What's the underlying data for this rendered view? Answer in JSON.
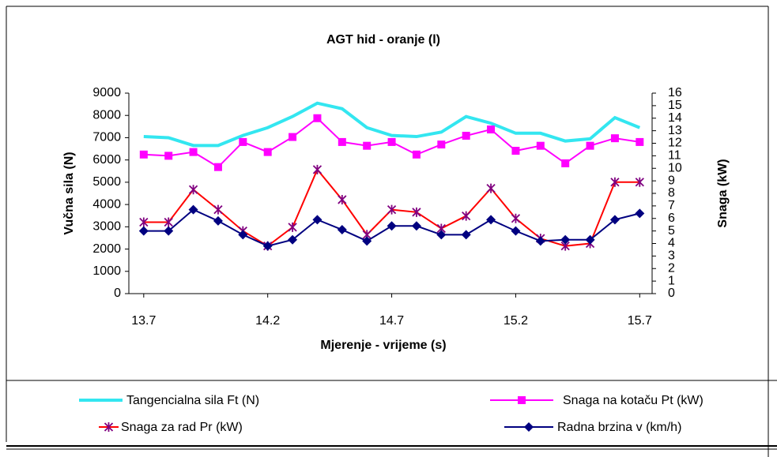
{
  "chart_data": {
    "type": "line",
    "title": "AGT hid  - oranje (l)",
    "x_label": "Mjerenje - vrijeme (s)",
    "y_label": "Vučna sila  (N)",
    "y2_label": "Snaga  (kW)",
    "x": [
      13.7,
      13.8,
      13.9,
      14.0,
      14.1,
      14.2,
      14.3,
      14.4,
      14.5,
      14.6,
      14.7,
      14.8,
      14.9,
      15.0,
      15.1,
      15.2,
      15.3,
      15.4,
      15.5,
      15.6,
      15.7
    ],
    "xlim": [
      13.64,
      15.75
    ],
    "xticks": [
      13.7,
      14.2,
      14.7,
      15.2,
      15.7
    ],
    "ylim": [
      0,
      9000
    ],
    "yticks": [
      0,
      1000,
      2000,
      3000,
      4000,
      5000,
      6000,
      7000,
      8000,
      9000
    ],
    "y2lim": [
      0,
      16
    ],
    "y2ticks": [
      0,
      1,
      2,
      3,
      4,
      5,
      6,
      7,
      8,
      9,
      10,
      11,
      12,
      13,
      14,
      15,
      16
    ],
    "grid": false,
    "legend": "bottom",
    "series": [
      {
        "name": "Tangencialna sila Ft (N)",
        "color": "#33e6f0",
        "marker": "none",
        "values": [
          7050,
          7000,
          6650,
          6650,
          7100,
          7450,
          7950,
          8550,
          8300,
          7450,
          7100,
          7050,
          7250,
          7950,
          7650,
          7200,
          7200,
          6850,
          6950,
          7900,
          7450
        ]
      },
      {
        "name": "Snaga na kotaču Pt (kW)",
        "color": "#ff00ff",
        "marker": "square",
        "axis": "y2",
        "values": [
          11.1,
          11.0,
          11.3,
          10.1,
          12.1,
          11.3,
          12.5,
          14.0,
          12.1,
          11.8,
          12.1,
          11.1,
          11.9,
          12.6,
          13.1,
          11.4,
          11.8,
          10.4,
          11.8,
          12.4,
          12.1
        ]
      },
      {
        "name": "Snaga za rad Pr (kW)",
        "color": "#ff0000",
        "marker": "star",
        "marker_color": "#800080",
        "axis": "y2",
        "values": [
          5.7,
          5.7,
          8.3,
          6.7,
          5.0,
          3.8,
          5.3,
          9.9,
          7.5,
          4.7,
          6.7,
          6.5,
          5.2,
          6.2,
          8.4,
          6.0,
          4.4,
          3.8,
          4.0,
          8.9,
          8.9
        ]
      },
      {
        "name": "Radna brzina  v (km/h)",
        "color": "#000080",
        "marker": "diamond",
        "axis": "y2",
        "values": [
          5.0,
          5.0,
          6.7,
          5.8,
          4.7,
          3.8,
          4.3,
          5.9,
          5.1,
          4.2,
          5.4,
          5.4,
          4.7,
          4.7,
          5.9,
          5.0,
          4.2,
          4.3,
          4.3,
          5.9,
          6.4
        ]
      }
    ]
  }
}
